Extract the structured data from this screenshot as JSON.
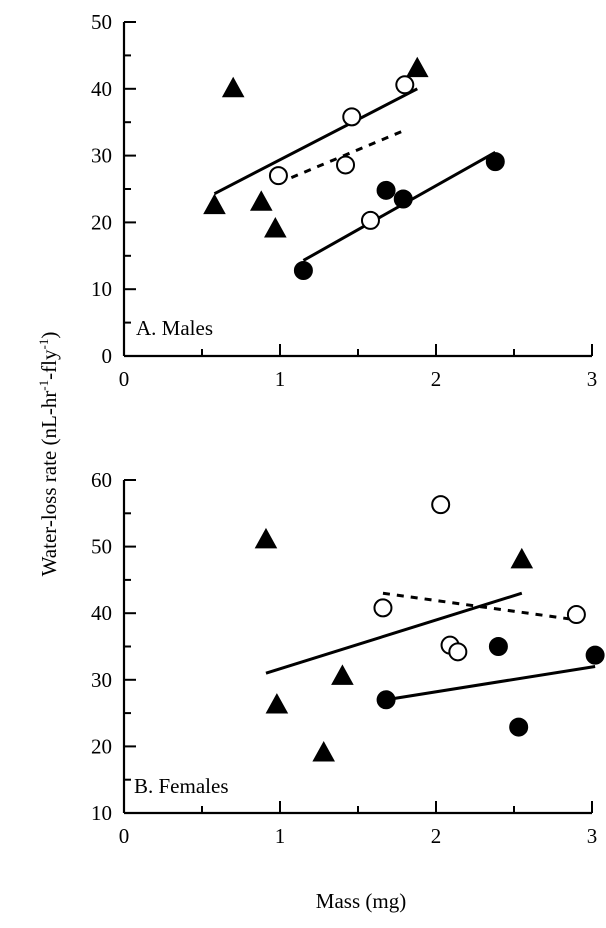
{
  "figure": {
    "ylabel": "Water-loss rate (nL-hr",
    "ylabel_sup1": "-1",
    "ylabel_mid": "-fly",
    "ylabel_sup2": "-1",
    "ylabel_end": ")",
    "xlabel": "Mass (mg)"
  },
  "chart_data": [
    {
      "type": "scatter",
      "panel": "A. Males",
      "label": "A. Males",
      "xlim": [
        0,
        3
      ],
      "ylim": [
        0,
        50
      ],
      "xticks": [
        0,
        1,
        2,
        3
      ],
      "yticks": [
        0,
        10,
        20,
        30,
        40,
        50
      ],
      "series": [
        {
          "marker": "triangle",
          "fill": "#000000",
          "points": [
            [
              0.58,
              22.5
            ],
            [
              0.7,
              40.0
            ],
            [
              0.88,
              23.0
            ],
            [
              0.97,
              19.0
            ],
            [
              1.88,
              43.0
            ]
          ],
          "fit": {
            "style": "solid",
            "from": [
              0.58,
              24.3
            ],
            "to": [
              1.88,
              40.0
            ]
          }
        },
        {
          "marker": "circle",
          "fill": "#ffffff",
          "points": [
            [
              0.99,
              27.0
            ],
            [
              1.42,
              28.6
            ],
            [
              1.46,
              35.8
            ],
            [
              1.58,
              20.3
            ],
            [
              1.8,
              40.6
            ]
          ],
          "fit": {
            "style": "dashed",
            "from": [
              0.99,
              25.9
            ],
            "to": [
              1.8,
              33.8
            ]
          }
        },
        {
          "marker": "circle",
          "fill": "#000000",
          "points": [
            [
              1.15,
              12.8
            ],
            [
              1.68,
              24.8
            ],
            [
              1.79,
              23.5
            ],
            [
              2.38,
              29.1
            ]
          ],
          "fit": {
            "style": "solid",
            "from": [
              1.15,
              14.3
            ],
            "to": [
              2.38,
              30.5
            ]
          }
        }
      ]
    },
    {
      "type": "scatter",
      "panel": "B. Females",
      "label": "B. Females",
      "xlim": [
        0,
        3
      ],
      "ylim": [
        10,
        60
      ],
      "xticks": [
        0,
        1,
        2,
        3
      ],
      "yticks": [
        10,
        20,
        30,
        40,
        50,
        60
      ],
      "series": [
        {
          "marker": "triangle",
          "fill": "#000000",
          "points": [
            [
              0.91,
              51.0
            ],
            [
              0.98,
              26.2
            ],
            [
              1.28,
              19.0
            ],
            [
              1.4,
              30.5
            ],
            [
              2.55,
              48.0
            ]
          ],
          "fit": {
            "style": "solid",
            "from": [
              0.91,
              31.0
            ],
            "to": [
              2.55,
              43.0
            ]
          }
        },
        {
          "marker": "circle",
          "fill": "#ffffff",
          "points": [
            [
              1.66,
              40.8
            ],
            [
              2.03,
              56.3
            ],
            [
              2.09,
              35.2
            ],
            [
              2.14,
              34.2
            ],
            [
              2.9,
              39.8
            ]
          ],
          "fit": {
            "style": "dashed",
            "from": [
              1.66,
              43.0
            ],
            "to": [
              2.9,
              39.0
            ]
          }
        },
        {
          "marker": "circle",
          "fill": "#000000",
          "points": [
            [
              1.68,
              27.0
            ],
            [
              2.4,
              35.0
            ],
            [
              2.53,
              22.9
            ],
            [
              3.02,
              33.7
            ]
          ],
          "fit": {
            "style": "solid",
            "from": [
              1.68,
              27.0
            ],
            "to": [
              3.02,
              32.0
            ]
          }
        }
      ]
    }
  ]
}
